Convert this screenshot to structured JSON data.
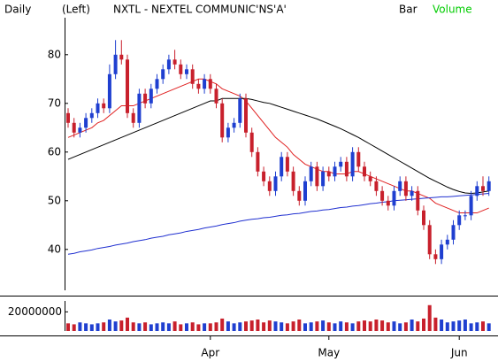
{
  "chart_data": {
    "type": "candlestick",
    "period_label": "Daily",
    "scale_label": "(Left)",
    "title": "NXTL - NEXTEL COMMUNIC'NS'A'",
    "bar_label": "Bar",
    "volume_label": "Volume",
    "volume_label_color": "#00cc00",
    "up_color": "#1f3fd0",
    "down_color": "#c8202c",
    "categories": [
      null,
      null,
      null,
      null,
      null,
      null,
      null,
      null,
      null,
      null,
      null,
      null,
      null,
      null,
      null,
      null,
      null,
      null,
      null,
      null,
      null,
      null,
      null,
      null,
      "Apr",
      null,
      null,
      null,
      null,
      null,
      null,
      null,
      null,
      null,
      null,
      null,
      null,
      null,
      null,
      null,
      null,
      null,
      null,
      null,
      "May",
      null,
      null,
      null,
      null,
      null,
      null,
      null,
      null,
      null,
      null,
      null,
      null,
      null,
      null,
      null,
      null,
      null,
      null,
      null,
      null,
      null,
      "Jun",
      null,
      null,
      null,
      null,
      null
    ],
    "open": [
      68,
      66,
      64,
      65,
      67,
      68,
      70,
      69,
      76,
      80,
      79,
      68,
      66,
      72,
      70,
      73,
      75,
      77,
      79,
      78,
      76,
      77,
      74,
      73,
      75,
      73,
      70,
      63,
      65,
      66,
      71,
      64,
      60,
      56,
      54,
      52,
      55,
      59,
      56,
      52,
      50,
      54,
      57,
      53,
      56,
      55,
      57,
      58,
      55,
      60,
      57,
      55,
      54,
      52,
      50,
      49,
      52,
      54,
      51,
      52,
      48,
      45,
      39,
      38,
      41,
      42,
      45,
      47,
      47,
      51,
      53,
      52
    ],
    "high": [
      69,
      67,
      66,
      68,
      69,
      71,
      71,
      78,
      83,
      83,
      80,
      69,
      73,
      73,
      74,
      76,
      78,
      80,
      81,
      79,
      78,
      78,
      75,
      76,
      76,
      74,
      71,
      66,
      67,
      72,
      72,
      65,
      61,
      57,
      55,
      56,
      60,
      60,
      57,
      53,
      55,
      58,
      58,
      57,
      57,
      58,
      59,
      59,
      61,
      61,
      58,
      56,
      55,
      53,
      51,
      53,
      55,
      55,
      53,
      53,
      49,
      46,
      40,
      42,
      43,
      46,
      48,
      48,
      52,
      54,
      55,
      55
    ],
    "low": [
      65,
      63,
      63,
      64,
      66,
      67,
      68,
      68,
      75,
      78,
      67,
      65,
      65,
      69,
      69,
      72,
      74,
      76,
      77,
      75,
      75,
      73,
      72,
      72,
      72,
      69,
      62,
      62,
      64,
      65,
      63,
      59,
      55,
      53,
      51,
      51,
      54,
      55,
      51,
      49,
      49,
      53,
      52,
      52,
      54,
      54,
      56,
      54,
      54,
      56,
      54,
      53,
      51,
      49,
      48,
      48,
      51,
      50,
      50,
      47,
      44,
      38,
      37,
      37,
      40,
      41,
      44,
      46,
      46,
      50,
      51,
      51
    ],
    "close": [
      66,
      64,
      65,
      67,
      68,
      70,
      69,
      76,
      80,
      79,
      68,
      66,
      72,
      70,
      73,
      75,
      77,
      79,
      78,
      76,
      77,
      74,
      73,
      75,
      73,
      70,
      63,
      65,
      66,
      71,
      64,
      60,
      56,
      54,
      52,
      55,
      59,
      56,
      52,
      50,
      54,
      57,
      53,
      56,
      55,
      57,
      58,
      55,
      60,
      57,
      55,
      54,
      52,
      50,
      49,
      52,
      54,
      51,
      52,
      48,
      45,
      39,
      38,
      41,
      42,
      45,
      47,
      47,
      51,
      53,
      52,
      54
    ],
    "ylim": [
      31.6,
      87.6
    ],
    "yticks": [
      40,
      50,
      60,
      70,
      80
    ],
    "lines": [
      {
        "color": "#e02020",
        "values": [
          63,
          63.5,
          64,
          64.5,
          65,
          66,
          66.5,
          67.5,
          68.5,
          69.5,
          69.5,
          69.5,
          70,
          70.5,
          71,
          71.5,
          72,
          72.5,
          73,
          73.5,
          74,
          74.5,
          75,
          75,
          74.5,
          74,
          73,
          72.5,
          72,
          71.5,
          70.5,
          69,
          67.5,
          66,
          64.5,
          63,
          62,
          61,
          59.5,
          58.5,
          57.5,
          57,
          56.5,
          56,
          56,
          55.5,
          55.5,
          55.5,
          56,
          56,
          55.5,
          55,
          54.5,
          54,
          53.5,
          53,
          52.5,
          52,
          52,
          51.5,
          51,
          50.5,
          49.5,
          49,
          48.5,
          48,
          47.5,
          47.5,
          47.5,
          47.5,
          48,
          48.5
        ]
      },
      {
        "color": "#000000",
        "values": [
          58.5,
          59,
          59.5,
          60,
          60.5,
          61,
          61.5,
          62,
          62.5,
          63,
          63.5,
          64,
          64.5,
          65,
          65.5,
          66,
          66.5,
          67,
          67.5,
          68,
          68.5,
          69,
          69.5,
          70,
          70.5,
          70.5,
          71,
          71,
          71,
          71,
          71,
          70.8,
          70.5,
          70.2,
          70,
          69.6,
          69.2,
          68.8,
          68.4,
          68,
          67.6,
          67.2,
          66.8,
          66.3,
          65.8,
          65.3,
          64.8,
          64.2,
          63.6,
          63,
          62.3,
          61.6,
          60.9,
          60.2,
          59.5,
          58.8,
          58.1,
          57.4,
          56.7,
          56,
          55.3,
          54.6,
          54,
          53.4,
          52.8,
          52.3,
          51.9,
          51.6,
          51.5,
          51.6,
          51.8,
          52
        ]
      },
      {
        "color": "#2030d0",
        "values": [
          39,
          39.2,
          39.5,
          39.7,
          39.9,
          40.2,
          40.4,
          40.6,
          40.9,
          41.1,
          41.3,
          41.6,
          41.8,
          42,
          42.3,
          42.5,
          42.7,
          43,
          43.2,
          43.4,
          43.7,
          43.9,
          44.1,
          44.4,
          44.6,
          44.8,
          45.1,
          45.3,
          45.5,
          45.8,
          46,
          46.2,
          46.3,
          46.5,
          46.6,
          46.8,
          47,
          47.1,
          47.3,
          47.4,
          47.6,
          47.8,
          47.9,
          48.1,
          48.2,
          48.4,
          48.6,
          48.7,
          48.9,
          49,
          49.2,
          49.4,
          49.5,
          49.7,
          49.8,
          50,
          50.1,
          50.2,
          50.3,
          50.4,
          50.5,
          50.6,
          50.7,
          50.8,
          50.8,
          50.9,
          51,
          51.1,
          51.2,
          51.3,
          51.4,
          51.5
        ]
      }
    ],
    "volume": {
      "values": [
        8000000,
        7000000,
        9000000,
        8000000,
        7000000,
        8000000,
        9000000,
        12000000,
        10000000,
        11000000,
        14000000,
        9000000,
        8000000,
        9000000,
        7000000,
        8000000,
        9000000,
        8000000,
        10000000,
        7000000,
        8000000,
        9000000,
        7000000,
        8000000,
        8000000,
        9000000,
        13000000,
        10000000,
        8000000,
        9000000,
        10000000,
        11000000,
        12000000,
        9000000,
        11000000,
        10000000,
        9000000,
        8000000,
        10000000,
        12000000,
        8000000,
        9000000,
        10000000,
        11000000,
        9000000,
        8000000,
        10000000,
        9000000,
        8000000,
        10000000,
        11000000,
        10000000,
        12000000,
        11000000,
        9000000,
        10000000,
        8000000,
        9000000,
        12000000,
        10000000,
        13000000,
        27000000,
        14000000,
        12000000,
        9000000,
        10000000,
        11000000,
        12000000,
        8000000,
        9000000,
        10000000,
        8000000
      ],
      "ylim": [
        0,
        31400000
      ],
      "yticks": [
        20000000
      ]
    }
  }
}
